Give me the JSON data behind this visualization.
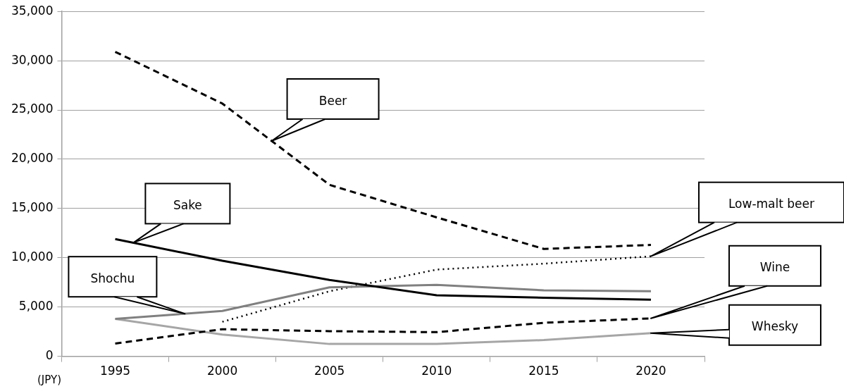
{
  "chart_data": {
    "type": "line",
    "ylabel": "(JPY)",
    "categories": [
      "1995",
      "2000",
      "2005",
      "2010",
      "2015",
      "2020"
    ],
    "series": [
      {
        "name": "Beer",
        "color": "#000000",
        "line_style": "dashed",
        "values": [
          30900,
          25650,
          17400,
          14100,
          10900,
          11300
        ]
      },
      {
        "name": "Sake",
        "color": "#000000",
        "line_style": "solid",
        "values": [
          11900,
          9700,
          7750,
          6200,
          5950,
          5750
        ]
      },
      {
        "name": "Shochu",
        "color": "#808080",
        "line_style": "solid",
        "values": [
          3800,
          4600,
          7000,
          7250,
          6700,
          6600
        ]
      },
      {
        "name": "Low-malt beer",
        "color": "#000000",
        "line_style": "dotted",
        "values": [
          null,
          3500,
          6600,
          8800,
          9400,
          10150
        ]
      },
      {
        "name": "Wine",
        "color": "#000000",
        "line_style": "dashed",
        "values": [
          1300,
          2750,
          2550,
          2450,
          3400,
          3850
        ]
      },
      {
        "name": "Whesky",
        "color": "#a6a6a6",
        "line_style": "solid",
        "values": [
          3800,
          2200,
          1250,
          1250,
          1650,
          2350
        ]
      }
    ],
    "ylim": [
      0,
      35000
    ],
    "yticks": [
      0,
      {
        "value": 5000,
        "label": "5,000"
      },
      {
        "value": 10000,
        "label": "10,000"
      },
      {
        "value": 15000,
        "label": "15,000"
      },
      {
        "value": 20000,
        "label": "20,000"
      },
      {
        "value": 25000,
        "label": "25,000"
      },
      {
        "value": 30000,
        "label": "30,000"
      },
      {
        "value": 35000,
        "label": "35,000"
      }
    ],
    "grid": "y",
    "legend": false,
    "marker": "none"
  }
}
